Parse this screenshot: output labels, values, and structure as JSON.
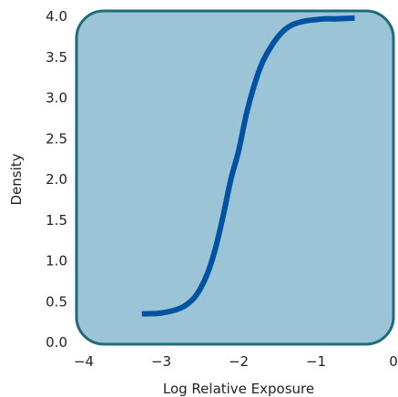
{
  "chart_data": {
    "type": "line",
    "title": "",
    "xlabel": "Log Relative Exposure",
    "ylabel": "Density",
    "xlim": [
      -4,
      0
    ],
    "ylim": [
      0,
      4
    ],
    "x_ticks": [
      -4,
      -3,
      -2,
      -1,
      0
    ],
    "x_tick_labels": [
      "−4",
      "−3",
      "−2",
      "−1",
      "0"
    ],
    "y_ticks": [
      0,
      0.5,
      1,
      1.5,
      2,
      2.5,
      3,
      3.5,
      4
    ],
    "y_tick_labels": [
      "0.0",
      "0.5",
      "1.0",
      "1.5",
      "2.0",
      "2.5",
      "3.0",
      "3.5",
      "4.0"
    ],
    "grid": false,
    "legend": "none",
    "colors": {
      "plot_background": "#9bc4d6",
      "plot_border": "#1e6b7b",
      "line": "#0052a3"
    },
    "series": [
      {
        "x": [
          -3.25,
          -3.0,
          -2.75,
          -2.6,
          -2.5,
          -2.4,
          -2.3,
          -2.2,
          -2.1,
          -2.0,
          -1.9,
          -1.8,
          -1.7,
          -1.6,
          -1.5,
          -1.4,
          -1.3,
          -1.2,
          -1.1,
          -1.0,
          -0.9,
          -0.75,
          -0.5
        ],
        "y": [
          0.35,
          0.36,
          0.42,
          0.52,
          0.65,
          0.85,
          1.15,
          1.55,
          2.0,
          2.35,
          2.8,
          3.15,
          3.42,
          3.6,
          3.74,
          3.84,
          3.9,
          3.93,
          3.95,
          3.96,
          3.97,
          3.97,
          3.98
        ]
      }
    ]
  }
}
